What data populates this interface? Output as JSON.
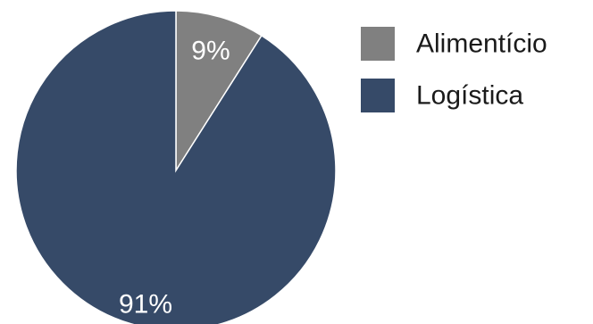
{
  "chart_data": {
    "type": "pie",
    "title": "",
    "legend_position": "right",
    "start_angle_deg": 0,
    "direction": "clockwise",
    "slices": [
      {
        "label": "Alimentício",
        "value": 9,
        "display": "9%",
        "color": "#808080"
      },
      {
        "label": "Logística",
        "value": 91,
        "display": "91%",
        "color": "#364a68"
      }
    ]
  }
}
